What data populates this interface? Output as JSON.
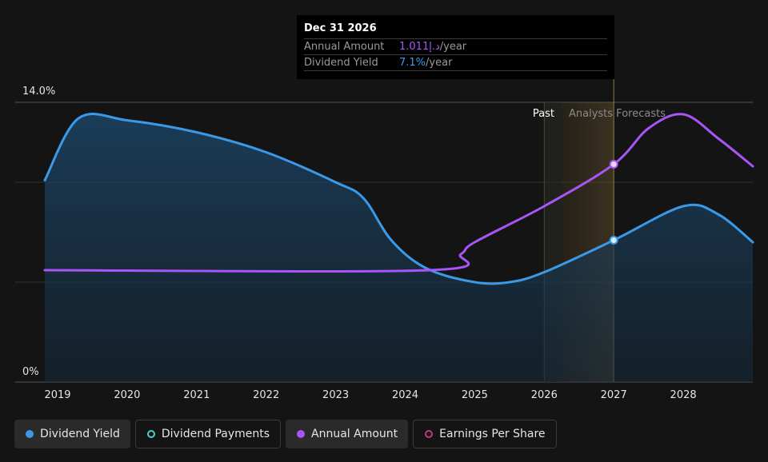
{
  "chart_data": {
    "type": "area",
    "x_ticks": [
      "2019",
      "2020",
      "2021",
      "2022",
      "2023",
      "2024",
      "2025",
      "2026",
      "2027",
      "2028"
    ],
    "y_ticks": [
      "14.0%",
      "0%"
    ],
    "ylim": [
      0,
      14
    ],
    "past_label": "Past",
    "forecast_label": "Analysts Forecasts",
    "series": [
      {
        "name": "Dividend Yield",
        "color": "#3b9ae8",
        "points": [
          [
            2018.8,
            10.1
          ],
          [
            2019.3,
            13.2
          ],
          [
            2020,
            13.1
          ],
          [
            2021,
            12.5
          ],
          [
            2022,
            11.5
          ],
          [
            2023,
            10.0
          ],
          [
            2023.4,
            9.2
          ],
          [
            2023.8,
            7.1
          ],
          [
            2024.3,
            5.7
          ],
          [
            2025,
            5.0
          ],
          [
            2025.5,
            5.0
          ],
          [
            2026,
            5.5
          ],
          [
            2027,
            7.1
          ],
          [
            2028,
            8.8
          ],
          [
            2028.5,
            8.4
          ],
          [
            2029,
            7.0
          ]
        ]
      },
      {
        "name": "Annual Amount",
        "color": "#a855f7",
        "points": [
          [
            2018.8,
            5.6
          ],
          [
            2024.35,
            5.6
          ],
          [
            2024.8,
            6.4
          ],
          [
            2025,
            7.0
          ],
          [
            2026,
            8.8
          ],
          [
            2027,
            10.9
          ],
          [
            2027.5,
            12.7
          ],
          [
            2028,
            13.4
          ],
          [
            2028.5,
            12.2
          ],
          [
            2029,
            10.8
          ]
        ]
      }
    ],
    "tooltip": {
      "date": "Dec 31 2026",
      "rows": [
        {
          "label": "Annual Amount",
          "value": "1.011د.إ",
          "unit": "/year"
        },
        {
          "label": "Dividend Yield",
          "value": "7.1%",
          "unit": "/year"
        }
      ]
    }
  },
  "legend": [
    {
      "label": "Dividend Yield",
      "color": "#3b9ae8",
      "active": true,
      "icon": "filled-circle"
    },
    {
      "label": "Dividend Payments",
      "color": "#4dd0c4",
      "active": false,
      "icon": "hollow-circle"
    },
    {
      "label": "Annual Amount",
      "color": "#a855f7",
      "active": true,
      "icon": "filled-circle"
    },
    {
      "label": "Earnings Per Share",
      "color": "#c0397a",
      "active": false,
      "icon": "hollow-circle"
    }
  ]
}
